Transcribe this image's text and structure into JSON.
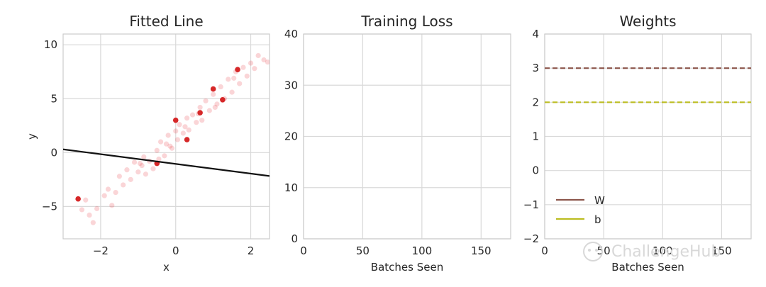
{
  "watermark": "ChallengeHub",
  "chart_data": [
    {
      "type": "scatter",
      "title": "Fitted Line",
      "xlabel": "x",
      "ylabel": "y",
      "xlim": [
        -3.0,
        2.5
      ],
      "ylim": [
        -8.0,
        11.0
      ],
      "xticks": [
        -2,
        0,
        2
      ],
      "yticks": [
        -5,
        0,
        5,
        10
      ],
      "grid": true,
      "colors": {
        "points": "#e8404a",
        "highlight": "#d62728",
        "line": "#111111"
      },
      "fit_line": {
        "slope": -0.45,
        "intercept": -1.05
      },
      "series": [
        {
          "values": [
            [
              -2.5,
              -5.3
            ],
            [
              -2.4,
              -4.4
            ],
            [
              -2.3,
              -5.8
            ],
            [
              -2.2,
              -6.5
            ],
            [
              -2.1,
              -5.2
            ],
            [
              -1.9,
              -4.0
            ],
            [
              -1.8,
              -3.4
            ],
            [
              -1.7,
              -4.9
            ],
            [
              -1.6,
              -3.7
            ],
            [
              -1.5,
              -2.2
            ],
            [
              -1.4,
              -3.0
            ],
            [
              -1.3,
              -1.6
            ],
            [
              -1.2,
              -2.5
            ],
            [
              -1.1,
              -0.9
            ],
            [
              -1.0,
              -1.8
            ],
            [
              -0.9,
              -1.2
            ],
            [
              -0.85,
              -0.4
            ],
            [
              -0.8,
              -2.0
            ],
            [
              -0.7,
              -0.8
            ],
            [
              -0.6,
              -1.5
            ],
            [
              -0.5,
              0.2
            ],
            [
              -0.45,
              -0.6
            ],
            [
              -0.4,
              1.0
            ],
            [
              -0.3,
              -0.3
            ],
            [
              -0.25,
              0.8
            ],
            [
              -0.2,
              1.6
            ],
            [
              -0.1,
              0.4
            ],
            [
              0.0,
              2.0
            ],
            [
              0.05,
              1.2
            ],
            [
              0.1,
              2.6
            ],
            [
              0.2,
              1.8
            ],
            [
              0.3,
              3.2
            ],
            [
              0.35,
              2.1
            ],
            [
              0.45,
              3.5
            ],
            [
              0.55,
              2.8
            ],
            [
              0.65,
              4.2
            ],
            [
              0.7,
              3.0
            ],
            [
              0.8,
              4.8
            ],
            [
              0.9,
              3.9
            ],
            [
              1.0,
              5.4
            ],
            [
              1.1,
              4.5
            ],
            [
              1.2,
              6.1
            ],
            [
              1.3,
              5.0
            ],
            [
              1.4,
              6.8
            ],
            [
              1.5,
              5.6
            ],
            [
              1.6,
              7.5
            ],
            [
              1.7,
              6.4
            ],
            [
              1.8,
              7.9
            ],
            [
              1.9,
              7.1
            ],
            [
              2.0,
              8.3
            ],
            [
              2.1,
              7.8
            ],
            [
              2.2,
              9.0
            ],
            [
              2.35,
              8.6
            ],
            [
              2.45,
              8.4
            ],
            [
              -0.95,
              -1.0
            ],
            [
              -0.15,
              0.6
            ],
            [
              0.25,
              2.4
            ],
            [
              0.6,
              3.6
            ],
            [
              1.05,
              4.2
            ],
            [
              1.55,
              6.9
            ]
          ]
        },
        {
          "name": "highlighted",
          "values": [
            [
              -2.6,
              -4.3
            ],
            [
              -0.5,
              -1.0
            ],
            [
              0.0,
              3.0
            ],
            [
              0.3,
              1.2
            ],
            [
              0.65,
              3.7
            ],
            [
              1.0,
              5.9
            ],
            [
              1.25,
              4.9
            ],
            [
              1.65,
              7.7
            ]
          ]
        }
      ]
    },
    {
      "type": "line",
      "title": "Training Loss",
      "xlabel": "Batches Seen",
      "ylabel": "",
      "xlim": [
        0,
        175
      ],
      "ylim": [
        0,
        40
      ],
      "xticks": [
        0,
        50,
        100,
        150
      ],
      "yticks": [
        0,
        10,
        20,
        30,
        40
      ],
      "grid": true,
      "series": []
    },
    {
      "type": "line",
      "title": "Weights",
      "xlabel": "Batches Seen",
      "ylabel": "",
      "xlim": [
        0,
        175
      ],
      "ylim": [
        -2,
        4
      ],
      "xticks": [
        0,
        50,
        100,
        150
      ],
      "xtick_labels": [
        "0",
        "50",
        "100",
        "150"
      ],
      "yticks": [
        -2,
        -1,
        0,
        1,
        2,
        3,
        4
      ],
      "grid": true,
      "legend": "lower-left",
      "series": [
        {
          "name": "W",
          "values": [
            [
              0,
              3
            ],
            [
              175,
              3
            ]
          ],
          "color": "#8c564b",
          "style": "dashed"
        },
        {
          "name": "b",
          "values": [
            [
              0,
              2
            ],
            [
              175,
              2
            ]
          ],
          "color": "#bcbd22",
          "style": "dashed"
        }
      ]
    }
  ]
}
